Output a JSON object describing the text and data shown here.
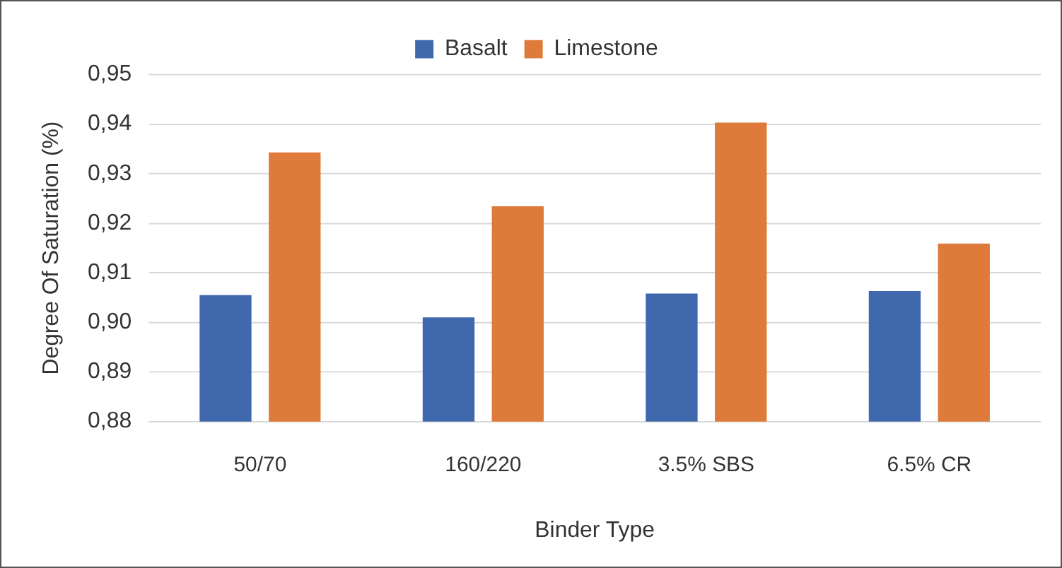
{
  "chart_data": {
    "type": "bar",
    "xlabel": "Binder Type",
    "ylabel": "Degree Of Saturation (%)",
    "categories": [
      "50/70",
      "160/220",
      "3.5% SBS",
      "6.5% CR"
    ],
    "series": [
      {
        "name": "Basalt",
        "color": "#4068ad",
        "values": [
          0.9055,
          0.901,
          0.9058,
          0.9063
        ]
      },
      {
        "name": "Limestone",
        "color": "#de7b3a",
        "values": [
          0.9343,
          0.9234,
          0.9403,
          0.9159
        ]
      }
    ],
    "ylim": [
      0.88,
      0.95
    ],
    "yticks": [
      {
        "value": 0.88,
        "label": "0,88"
      },
      {
        "value": 0.89,
        "label": "0,89"
      },
      {
        "value": 0.9,
        "label": "0,90"
      },
      {
        "value": 0.91,
        "label": "0,91"
      },
      {
        "value": 0.92,
        "label": "0,92"
      },
      {
        "value": 0.93,
        "label": "0,93"
      },
      {
        "value": 0.94,
        "label": "0,94"
      },
      {
        "value": 0.95,
        "label": "0,95"
      }
    ],
    "grid": "y",
    "legend": "top"
  }
}
